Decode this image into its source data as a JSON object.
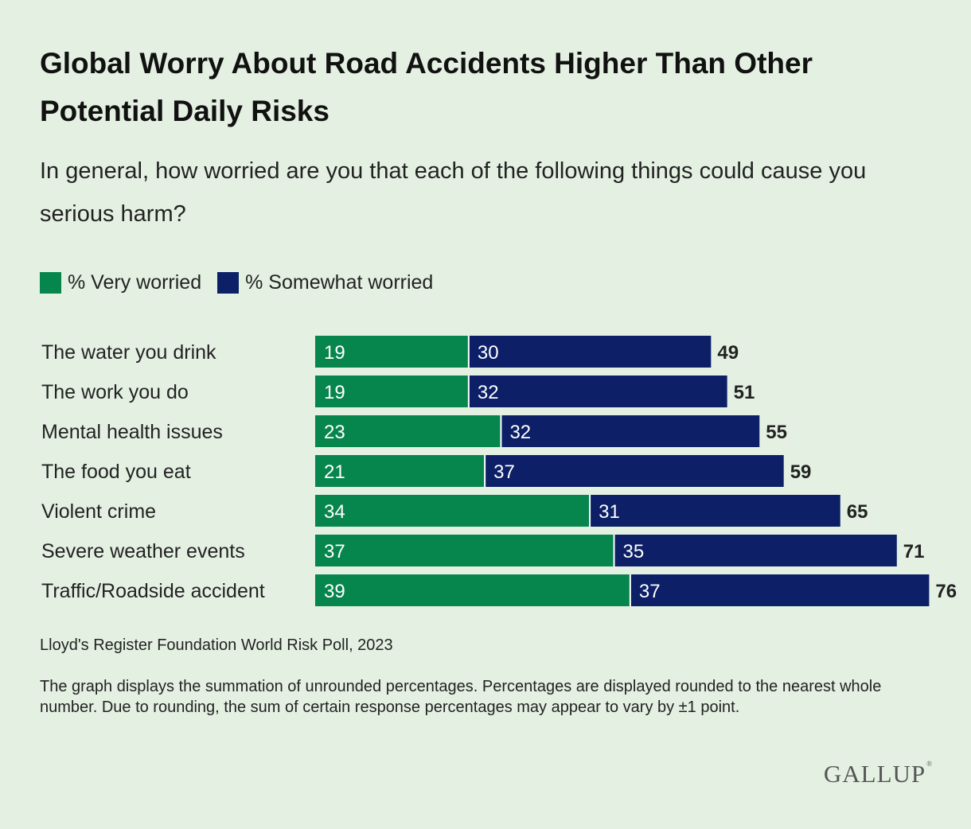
{
  "title": "Global Worry About Road Accidents Higher Than Other Potential Daily Risks",
  "subtitle": "In general, how worried are you that each of the following things could cause you serious harm?",
  "source": "Lloyd's Register Foundation World Risk Poll, 2023",
  "note": "The graph displays the summation of unrounded percentages. Percentages are displayed rounded to the nearest whole number. Due to rounding, the sum of certain response percentages may appear to vary by ±1 point.",
  "logo": "GALLUP",
  "logo_mark": "®",
  "colors": {
    "very": "#06864d",
    "somewhat": "#0c1f67",
    "background": "#e4f1e2"
  },
  "chart_data": {
    "type": "bar",
    "orientation": "horizontal",
    "stacked": true,
    "categories": [
      "The water you drink",
      "The work you do",
      "Mental health issues",
      "The food you eat",
      "Violent crime",
      "Severe weather events",
      "Traffic/Roadside accident"
    ],
    "series": [
      {
        "name": "% Very worried",
        "values": [
          19,
          19,
          23,
          21,
          34,
          37,
          39
        ]
      },
      {
        "name": "% Somewhat worried",
        "values": [
          30,
          32,
          32,
          37,
          31,
          35,
          37
        ]
      }
    ],
    "totals": [
      49,
      51,
      55,
      59,
      65,
      71,
      76
    ],
    "xlim": [
      0,
      76
    ],
    "legend": "top-left",
    "grid": false
  }
}
